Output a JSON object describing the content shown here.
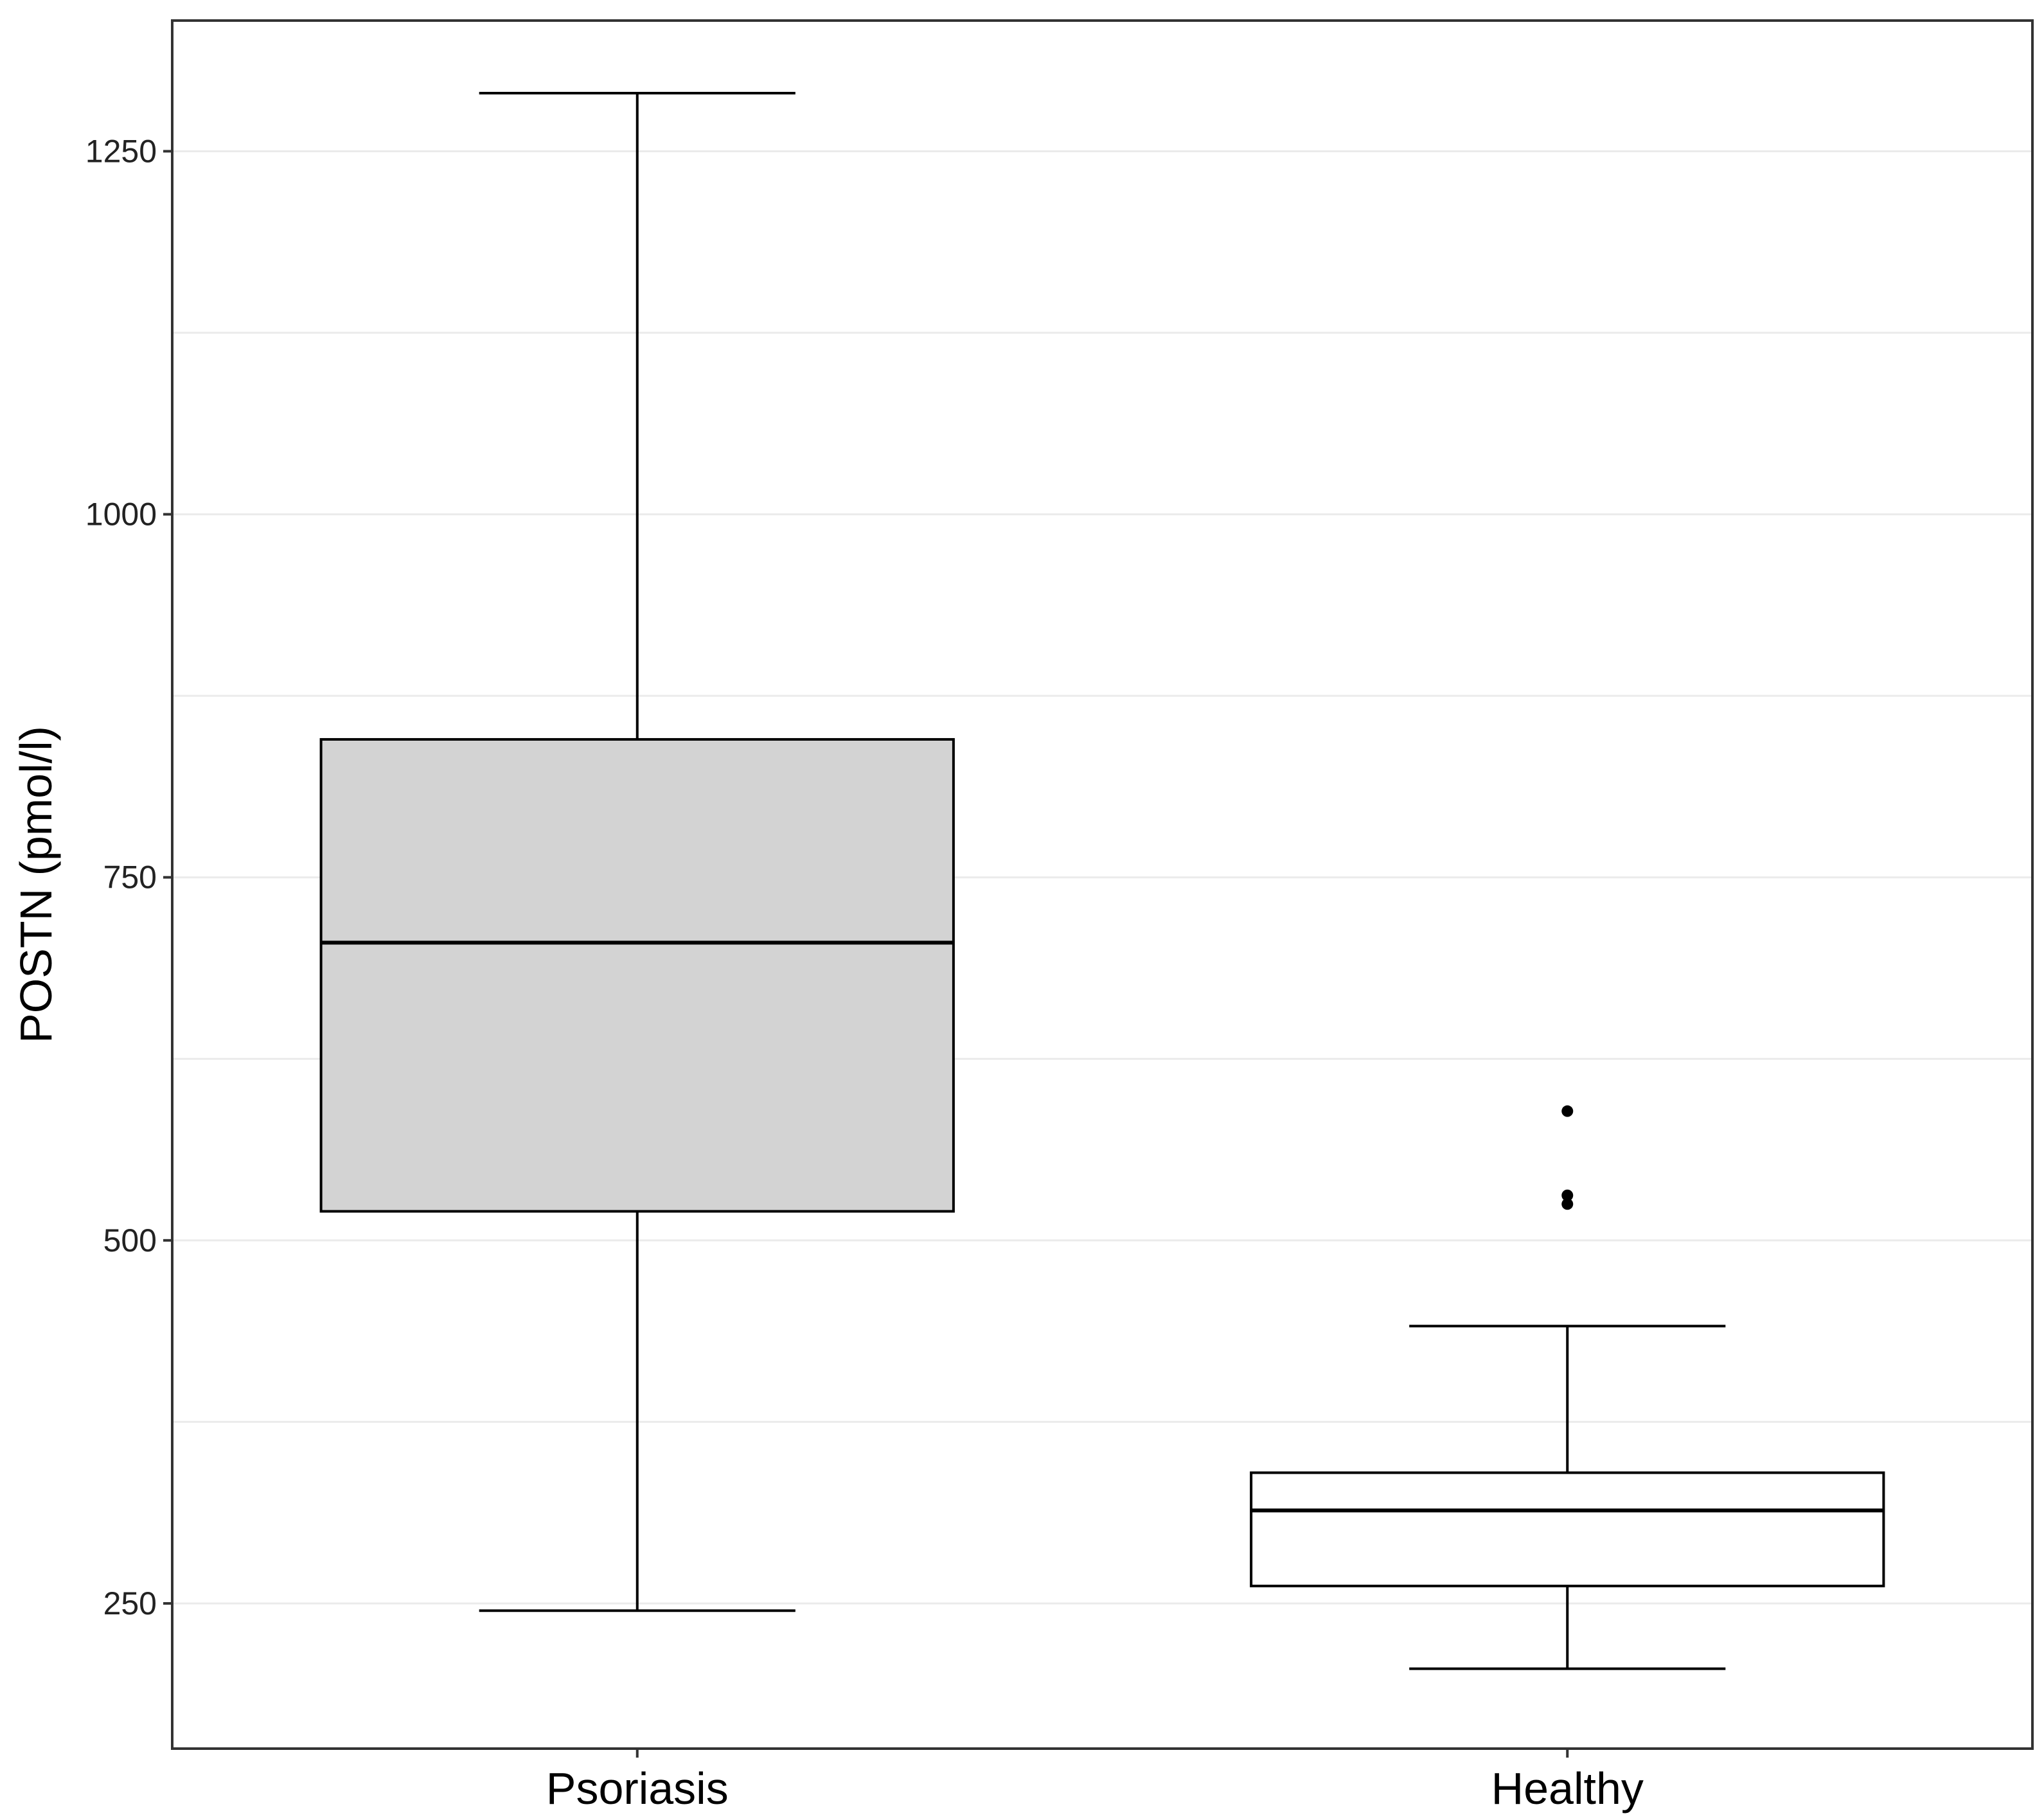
{
  "chart_data": {
    "type": "box",
    "title": "",
    "xlabel": "",
    "ylabel": "POSTN (pmol/l)",
    "ylim": [
      150,
      1340
    ],
    "y_ticks": [
      250,
      500,
      750,
      1000,
      1250
    ],
    "y_tick_labels": [
      "250",
      "500",
      "750",
      "1000",
      "1250"
    ],
    "minor_gridlines": [
      375,
      625,
      875,
      1125
    ],
    "grid": "horizontal",
    "categories": [
      "Psoriasis",
      "Healthy"
    ],
    "boxes": [
      {
        "category": "Psoriasis",
        "whisker_low": 245,
        "q1": 520,
        "median": 705,
        "q3": 845,
        "whisker_high": 1290,
        "outliers": [],
        "fill": "#d3d3d3"
      },
      {
        "category": "Healthy",
        "whisker_low": 205,
        "q1": 262,
        "median": 314,
        "q3": 340,
        "whisker_high": 441,
        "outliers": [
          525,
          531,
          589
        ],
        "fill": "#ffffff"
      }
    ],
    "colors": {
      "gridline": "#ebebeb",
      "border": "#333333",
      "stroke": "#000000"
    }
  }
}
